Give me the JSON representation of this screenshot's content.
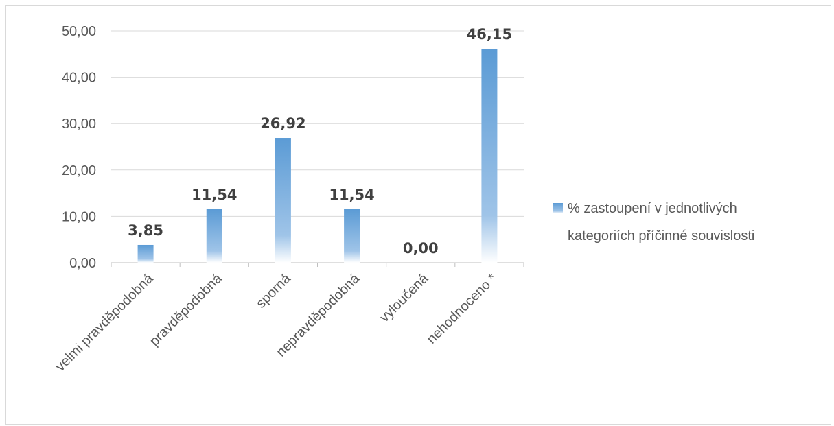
{
  "chart_data": {
    "type": "bar",
    "categories": [
      "velmi pravděpodobná",
      "pravděpodobná",
      "sporná",
      "nepravděpodobná",
      "vyloučená",
      "nehodnoceno *"
    ],
    "series": [
      {
        "name": "% zastoupení v jednotlivých kategoriích příčinné souvislosti",
        "values": [
          3.85,
          11.54,
          26.92,
          11.54,
          0.0,
          46.15
        ]
      }
    ],
    "data_labels": [
      "3,85",
      "11,54",
      "26,92",
      "11,54",
      "0,00",
      "46,15"
    ],
    "y_ticks": [
      0,
      10,
      20,
      30,
      40,
      50
    ],
    "y_tick_labels": [
      "0,00",
      "10,00",
      "20,00",
      "30,00",
      "40,00",
      "50,00"
    ],
    "ylim": [
      0,
      50
    ],
    "grid": true,
    "legend_position": "right",
    "legend_lines": [
      "% zastoupení v jednotlivých",
      "kategoriích příčinné souvislosti"
    ],
    "colors": {
      "bar_top": "#5b9bd5",
      "bar_bottom": "#ffffff",
      "grid": "#d9d9d9",
      "axis": "#bfbfbf"
    }
  }
}
